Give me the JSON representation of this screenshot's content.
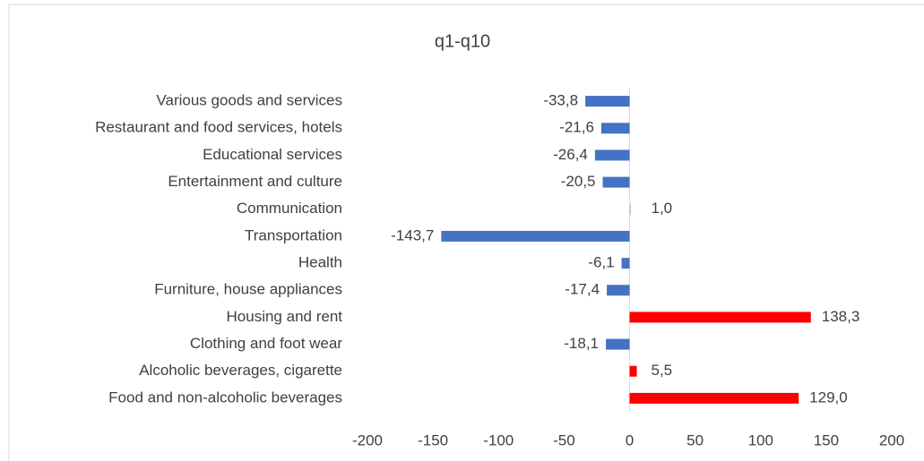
{
  "chart_data": {
    "type": "bar",
    "orientation": "horizontal",
    "title": "q1-q10",
    "categories": [
      "Various goods and services",
      "Restaurant and food services, hotels",
      "Educational services",
      "Entertainment and culture",
      "Communication",
      "Transportation",
      "Health",
      "Furniture, house appliances",
      "Housing and rent",
      "Clothing and foot wear",
      "Alcoholic beverages, cigarette",
      "Food and non-alcoholic beverages"
    ],
    "values": [
      -33.8,
      -21.6,
      -26.4,
      -20.5,
      1.0,
      -143.7,
      -6.1,
      -17.4,
      138.3,
      -18.1,
      5.5,
      129.0
    ],
    "value_labels": [
      "-33,8",
      "-21,6",
      "-26,4",
      "-20,5",
      "1,0",
      "-143,7",
      "-6,1",
      "-17,4",
      "138,3",
      "-18,1",
      "5,5",
      "129,0"
    ],
    "colors": [
      "#4472c4",
      "#4472c4",
      "#4472c4",
      "#4472c4",
      "#b4c7e7",
      "#4472c4",
      "#4472c4",
      "#4472c4",
      "#ff0000",
      "#4472c4",
      "#ff0000",
      "#ff0000"
    ],
    "xlim": [
      -200,
      200
    ],
    "xticks": [
      -200,
      -150,
      -100,
      -50,
      0,
      50,
      100,
      150,
      200
    ],
    "grid": false
  }
}
